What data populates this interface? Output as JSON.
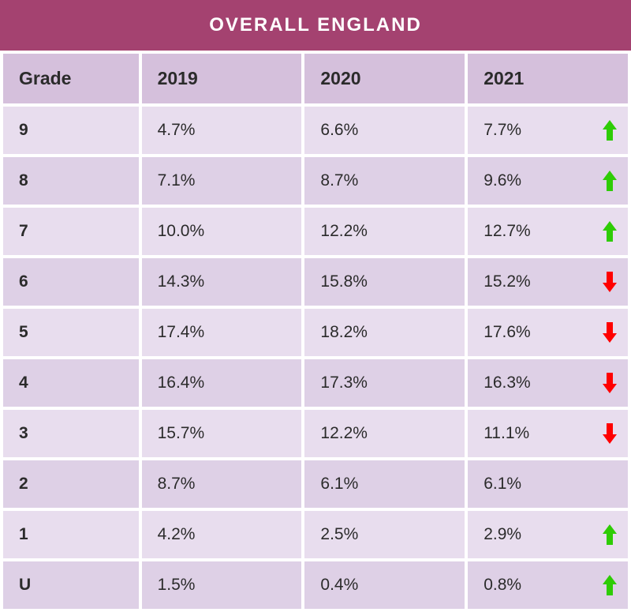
{
  "title": "OVERALL ENGLAND",
  "columns": [
    "Grade",
    "2019",
    "2020",
    "2021"
  ],
  "rows": [
    {
      "grade": "9",
      "y2019": "4.7%",
      "y2020": "6.6%",
      "y2021": "7.7%",
      "trend": "up"
    },
    {
      "grade": "8",
      "y2019": "7.1%",
      "y2020": "8.7%",
      "y2021": "9.6%",
      "trend": "up"
    },
    {
      "grade": "7",
      "y2019": "10.0%",
      "y2020": "12.2%",
      "y2021": "12.7%",
      "trend": "up"
    },
    {
      "grade": "6",
      "y2019": "14.3%",
      "y2020": "15.8%",
      "y2021": "15.2%",
      "trend": "down"
    },
    {
      "grade": "5",
      "y2019": "17.4%",
      "y2020": "18.2%",
      "y2021": "17.6%",
      "trend": "down"
    },
    {
      "grade": "4",
      "y2019": "16.4%",
      "y2020": "17.3%",
      "y2021": "16.3%",
      "trend": "down"
    },
    {
      "grade": "3",
      "y2019": "15.7%",
      "y2020": "12.2%",
      "y2021": "11.1%",
      "trend": "down"
    },
    {
      "grade": "2",
      "y2019": "8.7%",
      "y2020": "6.1%",
      "y2021": "6.1%",
      "trend": "none"
    },
    {
      "grade": "1",
      "y2019": "4.2%",
      "y2020": "2.5%",
      "y2021": "2.9%",
      "trend": "up"
    },
    {
      "grade": "U",
      "y2019": "1.5%",
      "y2020": "0.4%",
      "y2021": "0.8%",
      "trend": "up"
    }
  ],
  "style": {
    "type": "table",
    "title_bg": "#a44270",
    "title_color": "#ffffff",
    "title_fontsize": 24,
    "header_bg": "#d5c0dc",
    "header_color": "#2b2b2b",
    "header_fontsize": 23,
    "row_odd_bg": "#e8ddee",
    "row_even_bg": "#ded0e6",
    "text_color": "#2b2b2b",
    "cell_fontsize": 21,
    "border_spacing": 4,
    "col_widths_pct": [
      22,
      26,
      26,
      26
    ],
    "arrow_up_color": "#2ecc05",
    "arrow_down_color": "#ff0000",
    "background_color": "#ffffff"
  }
}
